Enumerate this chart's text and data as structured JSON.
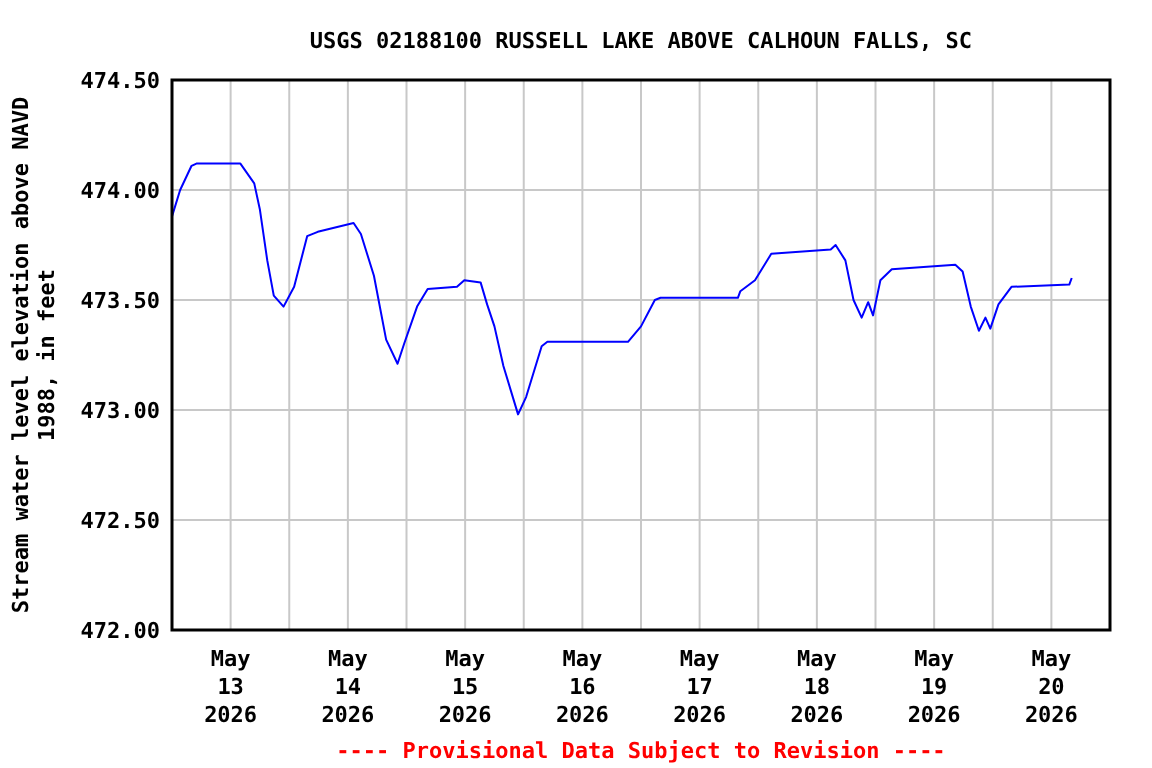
{
  "chart_data": {
    "type": "line",
    "title": "USGS 02188100 RUSSELL LAKE ABOVE CALHOUN FALLS, SC",
    "ylabel": "Stream water level elevation above NAVD 1988, in feet",
    "annotations": [
      "---- Provisional Data Subject to Revision ----"
    ],
    "xlim": [
      "2026-05-13T00:00",
      "2026-05-21T00:00"
    ],
    "xticks": [
      {
        "value": "2026-05-13T12:00",
        "label": "May\n13\n2026"
      },
      {
        "value": "2026-05-14T00:00",
        "label": null
      },
      {
        "value": "2026-05-14T12:00",
        "label": "May\n14\n2026"
      },
      {
        "value": "2026-05-15T00:00",
        "label": null
      },
      {
        "value": "2026-05-15T12:00",
        "label": "May\n15\n2026"
      },
      {
        "value": "2026-05-16T00:00",
        "label": null
      },
      {
        "value": "2026-05-16T12:00",
        "label": "May\n16\n2026"
      },
      {
        "value": "2026-05-17T00:00",
        "label": null
      },
      {
        "value": "2026-05-17T12:00",
        "label": "May\n17\n2026"
      },
      {
        "value": "2026-05-18T00:00",
        "label": null
      },
      {
        "value": "2026-05-18T12:00",
        "label": "May\n18\n2026"
      },
      {
        "value": "2026-05-19T00:00",
        "label": null
      },
      {
        "value": "2026-05-19T12:00",
        "label": "May\n19\n2026"
      },
      {
        "value": "2026-05-20T00:00",
        "label": null
      },
      {
        "value": "2026-05-20T12:00",
        "label": "May\n20\n2026"
      }
    ],
    "ylim": [
      472,
      474.5
    ],
    "yticks": [
      {
        "value": 472,
        "label": "472.00"
      },
      {
        "value": 472.5,
        "label": "472.50"
      },
      {
        "value": 473,
        "label": "473.00"
      },
      {
        "value": 473.5,
        "label": "473.50"
      },
      {
        "value": 474,
        "label": "474.00"
      },
      {
        "value": 474.5,
        "label": "474.50"
      }
    ],
    "grid": true,
    "marker": "none",
    "line_style": "solid",
    "series": [
      {
        "color": "#0000ff",
        "x": [
          "2026-05-13T00:00",
          "2026-05-13T01:40",
          "2026-05-13T04:00",
          "2026-05-13T05:00",
          "2026-05-13T14:00",
          "2026-05-13T16:50",
          "2026-05-13T18:00",
          "2026-05-13T19:30",
          "2026-05-13T20:50",
          "2026-05-13T22:50",
          "2026-05-14T01:00",
          "2026-05-14T03:40",
          "2026-05-14T05:50",
          "2026-05-14T13:10",
          "2026-05-14T14:40",
          "2026-05-14T17:20",
          "2026-05-14T19:50",
          "2026-05-14T22:10",
          "2026-05-14T23:30",
          "2026-05-15T02:10",
          "2026-05-15T04:20",
          "2026-05-15T10:20",
          "2026-05-15T11:50",
          "2026-05-15T15:10",
          "2026-05-15T16:30",
          "2026-05-15T18:00",
          "2026-05-15T19:50",
          "2026-05-15T22:50",
          "2026-05-16T00:30",
          "2026-05-16T03:40",
          "2026-05-16T04:50",
          "2026-05-16T21:20",
          "2026-05-17T00:00",
          "2026-05-17T02:50",
          "2026-05-17T04:00",
          "2026-05-17T19:50",
          "2026-05-17T20:20",
          "2026-05-17T23:20",
          "2026-05-18T02:40",
          "2026-05-18T14:50",
          "2026-05-18T15:50",
          "2026-05-18T17:50",
          "2026-05-18T19:30",
          "2026-05-18T21:10",
          "2026-05-18T22:30",
          "2026-05-18T23:30",
          "2026-05-19T01:00",
          "2026-05-19T03:20",
          "2026-05-19T16:20",
          "2026-05-19T17:50",
          "2026-05-19T19:30",
          "2026-05-19T21:10",
          "2026-05-19T22:30",
          "2026-05-19T23:30",
          "2026-05-20T01:10",
          "2026-05-20T03:50",
          "2026-05-20T15:40",
          "2026-05-20T16:10"
        ],
        "values": [
          473.88,
          474.0,
          474.11,
          474.12,
          474.12,
          474.03,
          473.91,
          473.68,
          473.52,
          473.47,
          473.56,
          473.79,
          473.81,
          473.85,
          473.8,
          473.61,
          473.32,
          473.21,
          473.3,
          473.47,
          473.55,
          473.56,
          473.59,
          473.58,
          473.48,
          473.38,
          473.2,
          472.98,
          473.06,
          473.29,
          473.31,
          473.31,
          473.38,
          473.5,
          473.51,
          473.51,
          473.54,
          473.59,
          473.71,
          473.73,
          473.75,
          473.68,
          473.5,
          473.42,
          473.49,
          473.43,
          473.59,
          473.64,
          473.66,
          473.63,
          473.47,
          473.36,
          473.42,
          473.37,
          473.48,
          473.56,
          473.57,
          473.6
        ]
      }
    ]
  }
}
